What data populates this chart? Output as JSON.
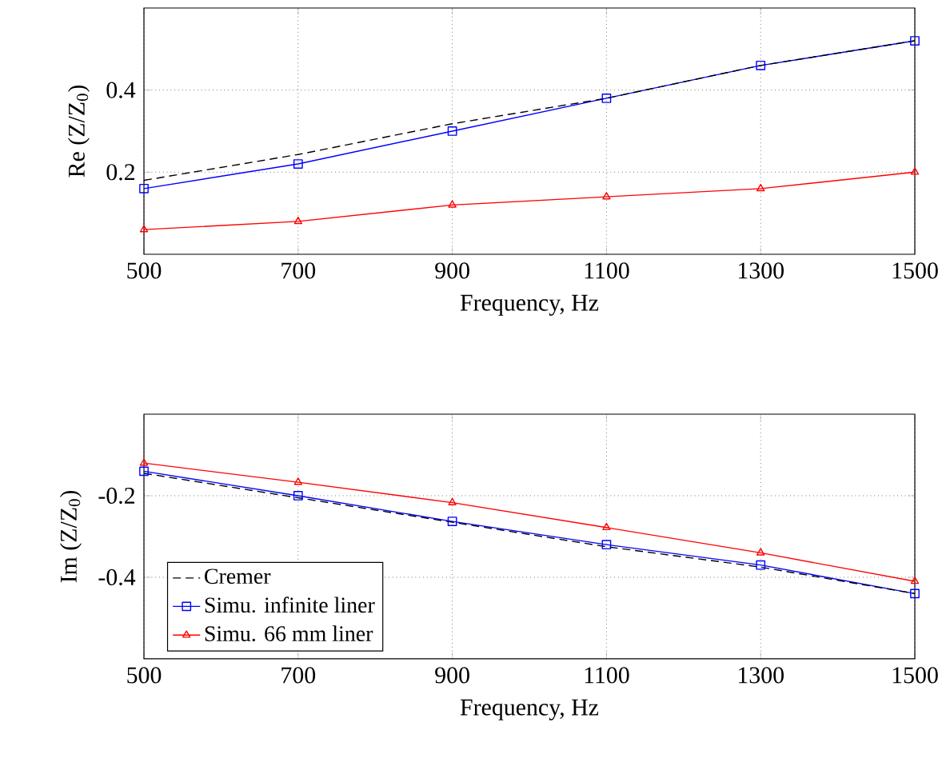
{
  "chart_data": [
    {
      "type": "line",
      "xlabel": "Frequency, Hz",
      "ylabel": "Re (Z/Z$_{0}$)",
      "x": [
        500,
        700,
        900,
        1100,
        1300,
        1500
      ],
      "xlim": [
        500,
        1500
      ],
      "xticks": [
        500,
        700,
        900,
        1100,
        1300,
        1500
      ],
      "ylim": [
        0,
        0.6
      ],
      "yticks": [
        0.2,
        0.4
      ],
      "grid": true,
      "legend": false,
      "series": [
        {
          "color": "#000000",
          "line_style": "dashed",
          "marker": "none",
          "values": [
            0.18,
            0.243,
            0.318,
            0.38,
            0.46,
            0.52
          ]
        },
        {
          "color": "#0000ff",
          "line_style": "solid",
          "marker": "square",
          "values": [
            0.16,
            0.22,
            0.3,
            0.38,
            0.46,
            0.52
          ]
        },
        {
          "color": "#ff0000",
          "line_style": "solid",
          "marker": "triangle",
          "values": [
            0.06,
            0.08,
            0.12,
            0.14,
            0.16,
            0.2
          ]
        }
      ]
    },
    {
      "type": "line",
      "xlabel": "Frequency, Hz",
      "ylabel": "Im (Z/Z$_{0}$)",
      "x": [
        500,
        700,
        900,
        1100,
        1300,
        1500
      ],
      "xlim": [
        500,
        1500
      ],
      "xticks": [
        500,
        700,
        900,
        1100,
        1300,
        1500
      ],
      "ylim": [
        -0.6,
        0
      ],
      "yticks": [
        -0.4,
        -0.2
      ],
      "grid": true,
      "legend": "bottom left",
      "series": [
        {
          "name": "Cremer",
          "color": "#000000",
          "line_style": "dashed",
          "marker": "none",
          "values": [
            -0.145,
            -0.205,
            -0.265,
            -0.325,
            -0.375,
            -0.44
          ]
        },
        {
          "name": "Simu. infinite liner",
          "color": "#0000ff",
          "line_style": "solid",
          "marker": "square",
          "values": [
            -0.14,
            -0.2,
            -0.263,
            -0.32,
            -0.37,
            -0.44
          ]
        },
        {
          "name": "Simu. 66 mm liner",
          "color": "#ff0000",
          "line_style": "solid",
          "marker": "triangle",
          "values": [
            -0.12,
            -0.167,
            -0.217,
            -0.278,
            -0.34,
            -0.41
          ]
        }
      ]
    }
  ]
}
